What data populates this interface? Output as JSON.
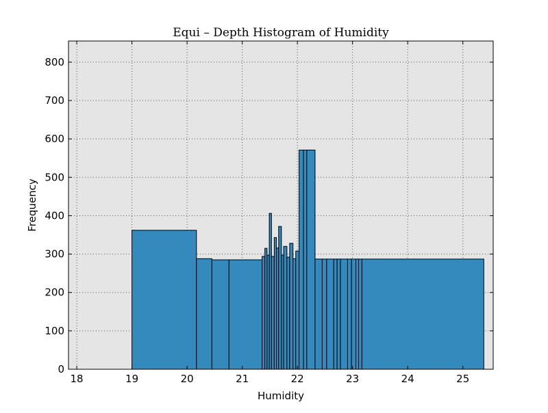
{
  "chart_data": {
    "type": "bar",
    "title": "Equi – Depth Histogram of Humidity",
    "xlabel": "Humidity",
    "ylabel": "Frequency",
    "xlim": [
      17.85,
      25.55
    ],
    "ylim": [
      0,
      855
    ],
    "x_ticks": [
      18,
      19,
      20,
      21,
      22,
      23,
      24,
      25
    ],
    "y_ticks": [
      0,
      100,
      200,
      300,
      400,
      500,
      600,
      700,
      800
    ],
    "grid": true,
    "background_color": "#e5e5e5",
    "bar_color": "#348abd",
    "edge_color": "#000000",
    "bins": [
      {
        "left": 19.0,
        "right": 20.17,
        "value": 362
      },
      {
        "left": 20.17,
        "right": 20.45,
        "value": 288
      },
      {
        "left": 20.45,
        "right": 20.76,
        "value": 285
      },
      {
        "left": 20.76,
        "right": 21.36,
        "value": 285
      },
      {
        "left": 21.36,
        "right": 21.41,
        "value": 294
      },
      {
        "left": 21.41,
        "right": 21.45,
        "value": 315
      },
      {
        "left": 21.45,
        "right": 21.49,
        "value": 297
      },
      {
        "left": 21.49,
        "right": 21.53,
        "value": 406
      },
      {
        "left": 21.53,
        "right": 21.58,
        "value": 294
      },
      {
        "left": 21.58,
        "right": 21.62,
        "value": 343
      },
      {
        "left": 21.62,
        "right": 21.66,
        "value": 316
      },
      {
        "left": 21.66,
        "right": 21.71,
        "value": 372
      },
      {
        "left": 21.71,
        "right": 21.75,
        "value": 297
      },
      {
        "left": 21.75,
        "right": 21.81,
        "value": 320
      },
      {
        "left": 21.81,
        "right": 21.86,
        "value": 292
      },
      {
        "left": 21.86,
        "right": 21.92,
        "value": 328
      },
      {
        "left": 21.92,
        "right": 21.97,
        "value": 288
      },
      {
        "left": 21.97,
        "right": 22.03,
        "value": 308
      },
      {
        "left": 22.03,
        "right": 22.11,
        "value": 571
      },
      {
        "left": 22.11,
        "right": 22.17,
        "value": 571
      },
      {
        "left": 22.17,
        "right": 22.32,
        "value": 571
      },
      {
        "left": 22.32,
        "right": 22.45,
        "value": 287
      },
      {
        "left": 22.45,
        "right": 22.53,
        "value": 287
      },
      {
        "left": 22.53,
        "right": 22.66,
        "value": 287
      },
      {
        "left": 22.66,
        "right": 22.72,
        "value": 287
      },
      {
        "left": 22.72,
        "right": 22.78,
        "value": 287
      },
      {
        "left": 22.78,
        "right": 22.91,
        "value": 287
      },
      {
        "left": 22.91,
        "right": 22.98,
        "value": 287
      },
      {
        "left": 22.98,
        "right": 23.06,
        "value": 287
      },
      {
        "left": 23.06,
        "right": 23.11,
        "value": 287
      },
      {
        "left": 23.11,
        "right": 23.17,
        "value": 287
      },
      {
        "left": 23.17,
        "right": 25.38,
        "value": 287
      }
    ]
  }
}
